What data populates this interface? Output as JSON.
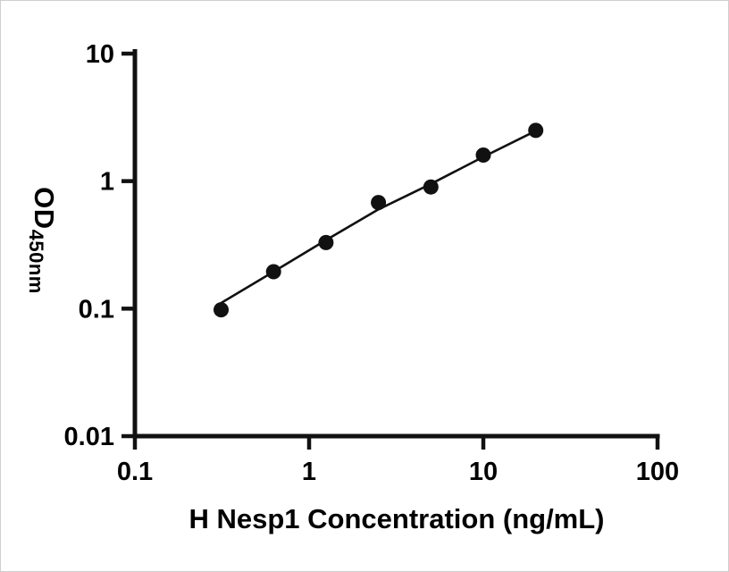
{
  "figure": {
    "background": "#ffffff",
    "x_axis_title": "H Nesp1 Concentration (ng/mL)",
    "y_axis_title_main": "OD",
    "y_axis_title_sub": "450nm"
  },
  "chart_data": {
    "type": "scatter",
    "title": "",
    "xlabel": "H Nesp1 Concentration (ng/mL)",
    "ylabel": "OD450nm",
    "x_scale": "log",
    "y_scale": "log",
    "xlim": [
      0.1,
      100
    ],
    "ylim": [
      0.01,
      10
    ],
    "grid": false,
    "legend": false,
    "axis_color": "#111111",
    "x_tick_values": [
      0.1,
      1,
      10,
      100
    ],
    "x_tick_labels": [
      "0.1",
      "1",
      "10",
      "100"
    ],
    "y_tick_values": [
      10,
      1,
      0.1,
      0.01
    ],
    "y_tick_labels": [
      "10",
      "1",
      "0.1",
      "0.01"
    ],
    "series": [
      {
        "name": "fit-line",
        "type": "line",
        "color": "#111111",
        "x": [
          0.3,
          0.625,
          1.25,
          2.5,
          5,
          10,
          20
        ],
        "y": [
          0.107,
          0.195,
          0.345,
          0.6,
          0.95,
          1.55,
          2.48
        ]
      },
      {
        "name": "standards",
        "type": "scatter",
        "marker": "circle",
        "color": "#111111",
        "x": [
          0.3125,
          0.625,
          1.25,
          2.5,
          5,
          10,
          20
        ],
        "y": [
          0.098,
          0.195,
          0.33,
          0.68,
          0.9,
          1.6,
          2.5
        ]
      }
    ]
  }
}
